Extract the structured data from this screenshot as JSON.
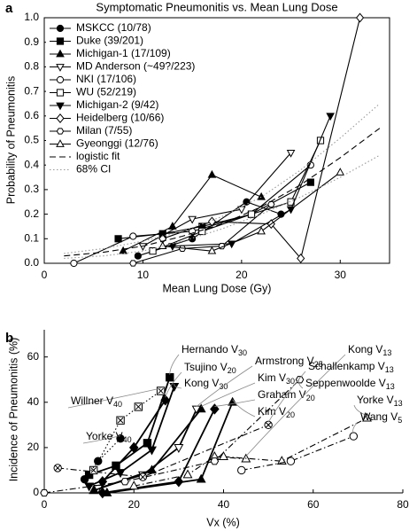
{
  "chart_data": [
    {
      "type": "line",
      "panel_label": "a",
      "title": "Symptomatic Pneumonitis vs. Mean Lung Dose",
      "xlabel": "Mean Lung Dose (Gy)",
      "ylabel": "Probability of Pneumonitis",
      "xlim": [
        0,
        35
      ],
      "xticks": [
        0,
        10,
        20,
        30
      ],
      "ylim": [
        0,
        1
      ],
      "yticks": [
        {
          "value": 0,
          "label": "0.0"
        },
        0.1,
        0.2,
        0.3,
        0.4,
        0.5,
        0.6,
        0.7,
        0.8,
        0.9,
        {
          "value": 1,
          "label": "1.0"
        }
      ],
      "legend": "upper left",
      "series": [
        {
          "name": "MSKCC (10/78)",
          "color": "#000000",
          "marker": "circle",
          "filled": true,
          "dash": "solid",
          "x": [
            9.5,
            15,
            20.5,
            24
          ],
          "values": [
            0.03,
            0.1,
            0.25,
            0.2
          ]
        },
        {
          "name": "Duke (39/201)",
          "color": "#000000",
          "marker": "square",
          "filled": true,
          "dash": "solid",
          "x": [
            7.5,
            12,
            16,
            21,
            27
          ],
          "values": [
            0.1,
            0.12,
            0.15,
            0.2,
            0.33
          ]
        },
        {
          "name": "Michigan-1 (17/109)",
          "color": "#000000",
          "marker": "triangle",
          "filled": true,
          "dash": "solid",
          "x": [
            8,
            13,
            17,
            22
          ],
          "values": [
            0.05,
            0.15,
            0.36,
            0.27
          ]
        },
        {
          "name": "MD Anderson (~49?/223)",
          "color": "#000000",
          "marker": "invtriangle",
          "filled": false,
          "dash": "solid",
          "x": [
            10,
            15,
            20,
            25
          ],
          "values": [
            0.07,
            0.18,
            0.22,
            0.45
          ]
        },
        {
          "name": "NKI (17/106)",
          "color": "#000000",
          "marker": "circle",
          "filled": false,
          "dash": "solid",
          "x": [
            3,
            9,
            15,
            21,
            27
          ],
          "values": [
            0,
            0.11,
            0.13,
            0.2,
            0.4
          ]
        },
        {
          "name": "WU (52/219)",
          "color": "#000000",
          "marker": "square",
          "filled": false,
          "dash": "solid",
          "x": [
            11,
            16,
            21,
            25,
            28
          ],
          "values": [
            0.05,
            0.13,
            0.2,
            0.25,
            0.5
          ]
        },
        {
          "name": "Michigan-2 (9/42)",
          "color": "#000000",
          "marker": "invtriangle",
          "filled": true,
          "dash": "solid",
          "x": [
            13,
            19,
            25,
            29
          ],
          "values": [
            0.07,
            0.08,
            0.22,
            0.6
          ]
        },
        {
          "name": "Heidelberg (10/66)",
          "color": "#000000",
          "marker": "diamond",
          "filled": false,
          "dash": "solid",
          "x": [
            12,
            17,
            23,
            26,
            32
          ],
          "values": [
            0.1,
            0.17,
            0.16,
            0.02,
            1
          ]
        },
        {
          "name": "Milan (7/55)",
          "color": "#000000",
          "marker": "hexagon",
          "filled": false,
          "dash": "solid",
          "x": [
            9,
            14,
            18,
            23
          ],
          "values": [
            0,
            0.06,
            0.07,
            0.24
          ]
        },
        {
          "name": "Gyeonggi (12/76)",
          "color": "#000000",
          "marker": "triangle",
          "filled": false,
          "dash": "solid",
          "x": [
            12,
            17,
            22,
            30
          ],
          "values": [
            0.07,
            0.05,
            0.13,
            0.37
          ]
        },
        {
          "name": "logistic fit",
          "color": "#000000",
          "dash": "dashed",
          "x": [
            2,
            6,
            10,
            14,
            18,
            22,
            26,
            30,
            34
          ],
          "values": [
            0.03,
            0.045,
            0.07,
            0.11,
            0.16,
            0.23,
            0.32,
            0.43,
            0.55
          ]
        },
        {
          "name": "68% CI",
          "color": "#999999",
          "dash": "dotted",
          "x": [
            2,
            6,
            10,
            14,
            18,
            22,
            26,
            30,
            34
          ],
          "lower": [
            0.02,
            0.03,
            0.05,
            0.09,
            0.14,
            0.2,
            0.27,
            0.35,
            0.44
          ],
          "upper": [
            0.04,
            0.06,
            0.09,
            0.13,
            0.19,
            0.27,
            0.38,
            0.51,
            0.65
          ]
        }
      ]
    },
    {
      "type": "line",
      "panel_label": "b",
      "xlabel": "Vx (%)",
      "ylabel": "Incidence of Pneumonitis (%)",
      "xlim": [
        0,
        80
      ],
      "xticks": [
        0,
        20,
        40,
        60,
        80
      ],
      "ylim": [
        0,
        72
      ],
      "yticks": [
        0,
        20,
        40,
        60
      ],
      "series": [
        {
          "label": "Hernando V",
          "subscript": "30",
          "color": "#000000",
          "marker": "square",
          "filled": true,
          "dash": "solid",
          "x": [
            10,
            16,
            23,
            28
          ],
          "values": [
            8,
            12,
            22,
            51
          ]
        },
        {
          "label": "Tsujino V",
          "subscript": "20",
          "color": "#000000",
          "marker": "diamond",
          "filled": true,
          "dash": "solid",
          "x": [
            13,
            20,
            27
          ],
          "values": [
            5,
            20,
            41
          ]
        },
        {
          "label": "Kong V",
          "subscript": "30",
          "color": "#000000",
          "marker": "invtriangle",
          "filled": true,
          "dash": "solid",
          "x": [
            10,
            17,
            24,
            29
          ],
          "values": [
            3,
            9,
            19,
            47
          ]
        },
        {
          "label": "Armstrong V",
          "subscript": "25",
          "color": "#000000",
          "marker": "invtriangle",
          "filled": false,
          "dash": "solid",
          "x": [
            12,
            22,
            30,
            34
          ],
          "values": [
            2,
            8,
            20,
            37
          ]
        },
        {
          "label": "Kim V",
          "subscript": "30",
          "color": "#000000",
          "marker": "triangle",
          "filled": true,
          "dash": "solid",
          "x": [
            11,
            24,
            35
          ],
          "values": [
            1,
            10,
            37
          ]
        },
        {
          "label": "Graham V",
          "subscript": "20",
          "color": "#000000",
          "marker": "diamond",
          "filled": true,
          "dash": "solid",
          "x": [
            13,
            30,
            38
          ],
          "values": [
            0,
            5,
            37
          ]
        },
        {
          "label": "Kim V",
          "subscript": "20",
          "color": "#000000",
          "marker": "triangle",
          "filled": true,
          "dash": "solid",
          "x": [
            14,
            35,
            42
          ],
          "values": [
            0,
            6,
            40
          ]
        },
        {
          "label": "Kong V",
          "subscript": "13",
          "color": "#000000",
          "marker": "triangle",
          "filled": false,
          "dash": "dashdot",
          "x": [
            20,
            32,
            38,
            45
          ],
          "values": [
            3,
            8,
            16,
            15
          ]
        },
        {
          "label": "Schallenkamp V",
          "subscript": "13",
          "color": "#000000",
          "marker": "crosscircle",
          "filled": false,
          "dash": "dashdot",
          "x": [
            3,
            22,
            50
          ],
          "values": [
            11,
            7,
            30
          ]
        },
        {
          "label": "Seppenwoolde V",
          "subscript": "13",
          "color": "#000000",
          "marker": "hexagon",
          "filled": false,
          "dash": "dashdot",
          "x": [
            0,
            18,
            38,
            57
          ],
          "values": [
            0,
            5,
            14,
            50
          ]
        },
        {
          "label": "Yorke V",
          "subscript": "13",
          "color": "#000000",
          "marker": "triangle",
          "filled": false,
          "dash": "dashdot",
          "x": [
            40,
            53,
            72
          ],
          "values": [
            16,
            14,
            33
          ]
        },
        {
          "label": "Wang V",
          "subscript": "5",
          "color": "#000000",
          "marker": "circle",
          "filled": false,
          "dash": "dashdot",
          "x": [
            44,
            55,
            69
          ],
          "values": [
            10,
            14,
            25
          ]
        },
        {
          "label": "Willner V",
          "subscript": "40",
          "color": "#000000",
          "marker": "crosssquare",
          "filled": false,
          "dash": "dotted",
          "x": [
            11,
            17,
            21,
            26
          ],
          "values": [
            10,
            32,
            38,
            45
          ]
        },
        {
          "label": "Yorke V",
          "subscript": "40",
          "color": "#000000",
          "marker": "circle",
          "filled": true,
          "dash": "dotted",
          "x": [
            9,
            12,
            17
          ],
          "values": [
            6,
            14,
            24
          ]
        }
      ]
    }
  ]
}
